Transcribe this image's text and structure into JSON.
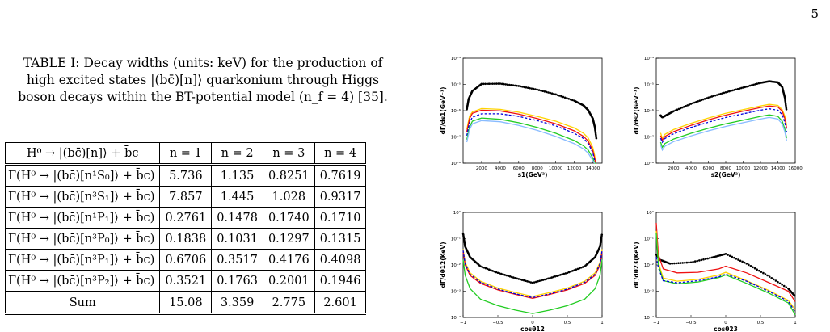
{
  "page_number": "5",
  "caption": "TABLE I: Decay widths (units: keV) for the production of high excited states |(bc̄)[n]⟩ quarkonium through Higgs boson decays within the BT-potential model (n_f = 4) [35].",
  "table": {
    "header": [
      "H⁰ → |(bc̄)[n]⟩ + b̄c",
      "n = 1",
      "n = 2",
      "n = 3",
      "n = 4"
    ],
    "rows": [
      {
        "process": "Γ(H⁰ → |(bc̄)[n¹S₀]⟩ + b̄c)",
        "values": [
          "5.736",
          "1.135",
          "0.8251",
          "0.7619"
        ]
      },
      {
        "process": "Γ(H⁰ → |(bc̄)[n³S₁]⟩ + b̄c)",
        "values": [
          "7.857",
          "1.445",
          "1.028",
          "0.9317"
        ]
      },
      {
        "process": "Γ(H⁰ → |(bc̄)[n¹P₁]⟩ + b̄c)",
        "values": [
          "0.2761",
          "0.1478",
          "0.1740",
          "0.1710"
        ]
      },
      {
        "process": "Γ(H⁰ → |(bc̄)[n³P₀]⟩ + b̄c)",
        "values": [
          "0.1838",
          "0.1031",
          "0.1297",
          "0.1315"
        ]
      },
      {
        "process": "Γ(H⁰ → |(bc̄)[n³P₁]⟩ + b̄c)",
        "values": [
          "0.6706",
          "0.3517",
          "0.4176",
          "0.4098"
        ]
      },
      {
        "process": "Γ(H⁰ → |(bc̄)[n³P₂]⟩ + b̄c)",
        "values": [
          "0.3521",
          "0.1763",
          "0.2001",
          "0.1946"
        ]
      }
    ],
    "sum": {
      "label": "Sum",
      "values": [
        "15.08",
        "3.359",
        "2.775",
        "2.601"
      ]
    }
  },
  "chart_data": [
    {
      "type": "line",
      "panel": "top-left",
      "xlabel": "s1(GeV²)",
      "ylabel": "dΓ/ds1(GeV⁻¹)",
      "xlim": [
        0,
        15000
      ],
      "ylim_log10": [
        -8,
        -4
      ],
      "yscale": "log",
      "xticks": [
        "2000",
        "4000",
        "6000",
        "8000",
        "10000",
        "12000",
        "14000"
      ],
      "yticks": [
        "10⁻⁸",
        "10⁻⁷",
        "10⁻⁶",
        "10⁻⁵",
        "10⁻⁴"
      ],
      "series": [
        {
          "color": "#000000",
          "style": "dotted",
          "x": [
            400,
            600,
            1000,
            2000,
            4000,
            6000,
            8000,
            10000,
            12000,
            13000,
            13500,
            14000,
            14200,
            14400
          ],
          "log10y": [
            -5.95,
            -5.55,
            -5.25,
            -4.98,
            -4.97,
            -5.06,
            -5.2,
            -5.38,
            -5.62,
            -5.8,
            -5.98,
            -6.3,
            -6.6,
            -7.1
          ]
        },
        {
          "color": "#ffd400",
          "style": "solid",
          "x": [
            400,
            700,
            1000,
            2000,
            4000,
            6000,
            8000,
            10000,
            12000,
            13000,
            13500,
            14000,
            14200,
            14300
          ],
          "log10y": [
            -6.7,
            -6.2,
            -6.05,
            -5.92,
            -5.95,
            -6.06,
            -6.22,
            -6.4,
            -6.66,
            -6.86,
            -7.04,
            -7.4,
            -7.7,
            -8.0
          ]
        },
        {
          "color": "#ee1111",
          "style": "solid",
          "x": [
            400,
            700,
            1000,
            2000,
            4000,
            6000,
            8000,
            10000,
            12000,
            13000,
            13500,
            14000,
            14200,
            14300
          ],
          "log10y": [
            -6.8,
            -6.3,
            -6.1,
            -5.98,
            -6.01,
            -6.13,
            -6.3,
            -6.5,
            -6.77,
            -6.98,
            -7.16,
            -7.52,
            -7.8,
            -8.0
          ]
        },
        {
          "color": "#0000dd",
          "style": "dashed",
          "x": [
            400,
            700,
            1000,
            2000,
            4000,
            6000,
            8000,
            10000,
            12000,
            13000,
            13500,
            14000,
            14200
          ],
          "log10y": [
            -6.95,
            -6.45,
            -6.25,
            -6.12,
            -6.12,
            -6.22,
            -6.38,
            -6.58,
            -6.86,
            -7.06,
            -7.25,
            -7.6,
            -7.9
          ]
        },
        {
          "color": "#22cc22",
          "style": "solid",
          "x": [
            400,
            700,
            1000,
            2000,
            4000,
            6000,
            8000,
            10000,
            12000,
            13000,
            13500,
            14000,
            14200,
            14300
          ],
          "log10y": [
            -7.1,
            -6.62,
            -6.4,
            -6.28,
            -6.33,
            -6.46,
            -6.64,
            -6.86,
            -7.14,
            -7.34,
            -7.5,
            -7.8,
            -8.0,
            -8.0
          ]
        },
        {
          "color": "#88bbff",
          "style": "solid",
          "x": [
            400,
            700,
            1000,
            2000,
            4000,
            6000,
            8000,
            10000,
            12000,
            13000,
            13500,
            14000,
            14200
          ],
          "log10y": [
            -7.2,
            -6.72,
            -6.5,
            -6.38,
            -6.42,
            -6.56,
            -6.75,
            -6.98,
            -7.26,
            -7.46,
            -7.62,
            -7.9,
            -8.0
          ]
        }
      ]
    },
    {
      "type": "line",
      "panel": "top-right",
      "xlabel": "s2(GeV²)",
      "ylabel": "dΓ/ds2(GeV⁻¹)",
      "xlim": [
        0,
        16000
      ],
      "ylim_log10": [
        -8,
        -4
      ],
      "yscale": "log",
      "xticks": [
        "2000",
        "4000",
        "6000",
        "8000",
        "10000",
        "12000",
        "14000",
        "16000"
      ],
      "yticks": [
        "10⁻⁸",
        "10⁻⁷",
        "10⁻⁶",
        "10⁻⁵",
        "10⁻⁴"
      ],
      "series": [
        {
          "color": "#000000",
          "style": "dotted",
          "x": [
            500,
            700,
            1000,
            2000,
            4000,
            6000,
            8000,
            10000,
            12000,
            13000,
            14000,
            14500,
            14800,
            15000
          ],
          "log10y": [
            -6.18,
            -6.25,
            -6.2,
            -6.02,
            -5.74,
            -5.5,
            -5.3,
            -5.12,
            -4.94,
            -4.88,
            -4.92,
            -5.1,
            -5.5,
            -6.0
          ]
        },
        {
          "color": "#ffd400",
          "style": "solid",
          "x": [
            500,
            700,
            1000,
            2000,
            4000,
            6000,
            8000,
            10000,
            12000,
            13000,
            14000,
            14500,
            14800,
            15000
          ],
          "log10y": [
            -6.85,
            -7.05,
            -6.9,
            -6.72,
            -6.48,
            -6.28,
            -6.1,
            -5.96,
            -5.82,
            -5.76,
            -5.8,
            -5.96,
            -6.2,
            -6.55
          ]
        },
        {
          "color": "#ee1111",
          "style": "solid",
          "x": [
            500,
            700,
            1000,
            2000,
            4000,
            6000,
            8000,
            10000,
            12000,
            13000,
            14000,
            14500,
            14800,
            15000
          ],
          "log10y": [
            -6.95,
            -7.12,
            -6.98,
            -6.8,
            -6.56,
            -6.35,
            -6.17,
            -6.02,
            -5.88,
            -5.82,
            -5.86,
            -6.02,
            -6.3,
            -6.65
          ]
        },
        {
          "color": "#0000dd",
          "style": "dashed",
          "x": [
            500,
            700,
            1000,
            2000,
            4000,
            6000,
            8000,
            10000,
            12000,
            13000,
            14000,
            14500,
            14800,
            15000
          ],
          "log10y": [
            -7.05,
            -7.2,
            -7.06,
            -6.88,
            -6.64,
            -6.44,
            -6.26,
            -6.12,
            -5.98,
            -5.93,
            -5.98,
            -6.15,
            -6.45,
            -6.8
          ]
        },
        {
          "color": "#22cc22",
          "style": "solid",
          "x": [
            500,
            700,
            1000,
            2000,
            4000,
            6000,
            8000,
            10000,
            12000,
            13000,
            14000,
            14500,
            14800,
            15000
          ],
          "log10y": [
            -7.2,
            -7.4,
            -7.25,
            -7.08,
            -6.86,
            -6.67,
            -6.5,
            -6.36,
            -6.22,
            -6.16,
            -6.22,
            -6.4,
            -6.7,
            -7.05
          ]
        },
        {
          "color": "#88bbff",
          "style": "solid",
          "x": [
            500,
            700,
            1000,
            2000,
            4000,
            6000,
            8000,
            10000,
            12000,
            13000,
            14000,
            14500,
            14800,
            15000
          ],
          "log10y": [
            -7.3,
            -7.5,
            -7.35,
            -7.18,
            -6.96,
            -6.77,
            -6.6,
            -6.46,
            -6.32,
            -6.26,
            -6.32,
            -6.5,
            -6.8,
            -7.15
          ]
        }
      ]
    },
    {
      "type": "line",
      "panel": "bottom-left",
      "xlabel": "cosθ12",
      "ylabel": "dΓ/dθ12(KeV)",
      "xlim": [
        -1,
        1
      ],
      "ylim_log10": [
        -4,
        0
      ],
      "yscale": "log",
      "xticks": [
        "−1",
        "−0.5",
        "0",
        "0.5",
        "1"
      ],
      "yticks": [
        "10⁻⁴",
        "10⁻³",
        "10⁻²",
        "10⁻¹",
        "10⁰"
      ],
      "series": [
        {
          "color": "#000000",
          "style": "dotted",
          "x": [
            -1,
            -0.97,
            -0.9,
            -0.75,
            -0.5,
            -0.25,
            0,
            0.25,
            0.5,
            0.75,
            0.9,
            0.97,
            1
          ],
          "log10y": [
            -0.8,
            -1.3,
            -1.7,
            -2.05,
            -2.3,
            -2.5,
            -2.68,
            -2.5,
            -2.3,
            -2.05,
            -1.7,
            -1.3,
            -0.8
          ]
        },
        {
          "color": "#ffd400",
          "style": "solid",
          "x": [
            -1,
            -0.97,
            -0.9,
            -0.75,
            -0.5,
            -0.25,
            0,
            0.25,
            0.5,
            0.75,
            0.9,
            0.97,
            1
          ],
          "log10y": [
            -1.4,
            -1.9,
            -2.3,
            -2.62,
            -2.88,
            -3.05,
            -3.2,
            -3.05,
            -2.88,
            -2.62,
            -2.3,
            -1.9,
            -1.4
          ]
        },
        {
          "color": "#ee1111",
          "style": "solid",
          "x": [
            -1,
            -0.97,
            -0.9,
            -0.75,
            -0.5,
            -0.25,
            0,
            0.25,
            0.5,
            0.75,
            0.9,
            0.97,
            1
          ],
          "log10y": [
            -1.5,
            -2.0,
            -2.4,
            -2.7,
            -2.95,
            -3.12,
            -3.27,
            -3.12,
            -2.95,
            -2.7,
            -2.4,
            -2.0,
            -1.5
          ]
        },
        {
          "color": "#0000dd",
          "style": "dashed",
          "x": [
            -1,
            -0.97,
            -0.9,
            -0.75,
            -0.5,
            -0.25,
            0,
            0.25,
            0.5,
            0.75,
            0.9,
            0.97,
            1
          ],
          "log10y": [
            -1.45,
            -1.95,
            -2.35,
            -2.66,
            -2.92,
            -3.1,
            -3.24,
            -3.1,
            -2.92,
            -2.66,
            -2.35,
            -1.95,
            -1.45
          ]
        },
        {
          "color": "#22cc22",
          "style": "solid",
          "x": [
            -1,
            -0.97,
            -0.9,
            -0.75,
            -0.5,
            -0.25,
            0,
            0.25,
            0.5,
            0.75,
            0.9,
            0.97,
            1
          ],
          "log10y": [
            -1.8,
            -2.4,
            -2.9,
            -3.3,
            -3.55,
            -3.72,
            -3.85,
            -3.72,
            -3.55,
            -3.3,
            -2.9,
            -2.4,
            -1.8
          ]
        }
      ]
    },
    {
      "type": "line",
      "panel": "bottom-right",
      "xlabel": "cosθ23",
      "ylabel": "dΓ/dθ23(KeV)",
      "xlim": [
        -1,
        1
      ],
      "ylim_log10": [
        -4,
        0
      ],
      "yscale": "log",
      "xticks": [
        "−1",
        "−0.5",
        "0",
        "0.5",
        "1"
      ],
      "yticks": [
        "10⁻⁴",
        "10⁻³",
        "10⁻²",
        "10⁻¹",
        "10⁰"
      ],
      "series": [
        {
          "color": "#000000",
          "style": "dotted",
          "x": [
            -1,
            -0.95,
            -0.8,
            -0.5,
            -0.2,
            0,
            0.3,
            0.6,
            0.9,
            1
          ],
          "log10y": [
            -1.6,
            -1.8,
            -1.95,
            -1.9,
            -1.72,
            -1.58,
            -1.95,
            -2.4,
            -2.9,
            -3.2
          ]
        },
        {
          "color": "#ee1111",
          "style": "solid",
          "x": [
            -1,
            -0.97,
            -0.9,
            -0.7,
            -0.4,
            -0.1,
            0,
            0.3,
            0.6,
            0.9,
            1
          ],
          "log10y": [
            -0.4,
            -1.6,
            -2.15,
            -2.3,
            -2.28,
            -2.15,
            -2.05,
            -2.3,
            -2.65,
            -3.0,
            -3.4
          ]
        },
        {
          "color": "#ffd400",
          "style": "solid",
          "x": [
            -1,
            -0.97,
            -0.9,
            -0.7,
            -0.4,
            -0.1,
            0,
            0.3,
            0.6,
            0.9,
            1
          ],
          "log10y": [
            -0.7,
            -1.9,
            -2.5,
            -2.62,
            -2.55,
            -2.38,
            -2.28,
            -2.6,
            -2.95,
            -3.35,
            -3.7
          ]
        },
        {
          "color": "#22cc22",
          "style": "solid",
          "x": [
            -1,
            -0.97,
            -0.9,
            -0.7,
            -0.4,
            -0.1,
            0,
            0.3,
            0.6,
            0.9,
            1
          ],
          "log10y": [
            -0.8,
            -2.0,
            -2.6,
            -2.72,
            -2.65,
            -2.48,
            -2.38,
            -2.7,
            -3.05,
            -3.45,
            -3.9
          ]
        },
        {
          "color": "#0000dd",
          "style": "dashed",
          "x": [
            -1,
            -0.97,
            -0.9,
            -0.7,
            -0.4,
            -0.1,
            0,
            0.3,
            0.6,
            0.9,
            1
          ],
          "log10y": [
            -1.7,
            -2.1,
            -2.6,
            -2.68,
            -2.6,
            -2.45,
            -2.35,
            -2.62,
            -2.98,
            -3.38,
            -3.8
          ]
        }
      ]
    }
  ]
}
